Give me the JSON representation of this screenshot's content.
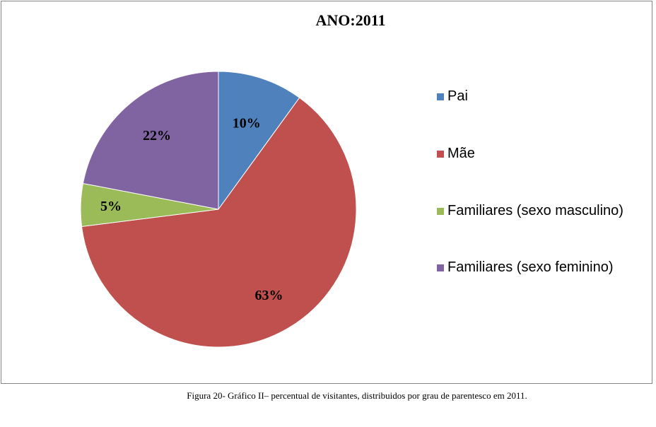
{
  "chart_data": {
    "type": "pie",
    "title": "ANO:2011",
    "categories": [
      "Pai",
      "Mãe",
      "Familiares (sexo masculino)",
      "Familiares (sexo feminino)"
    ],
    "values": [
      10,
      63,
      5,
      22
    ],
    "labels": [
      "10%",
      "63%",
      "5%",
      "22%"
    ],
    "colors": [
      "#4F81BD",
      "#C0504D",
      "#9BBB59",
      "#8064A2"
    ],
    "legend_position": "right"
  },
  "caption": "Figura 20- Gráfico II– percentual de visitantes, distribuidos por grau de parentesco em 2011."
}
